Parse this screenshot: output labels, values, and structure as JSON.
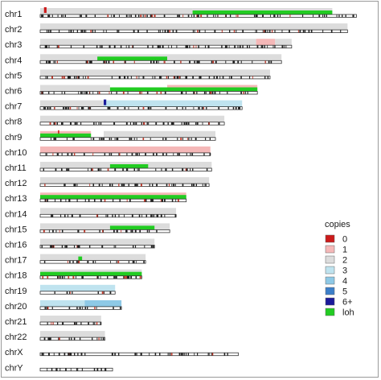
{
  "chart_data": {
    "type": "genome-karyogram",
    "title": "",
    "xlabel": "",
    "ylabel": "",
    "grid": false,
    "legend_placement": "right",
    "legend_title": "copies",
    "legend": [
      {
        "label": "0",
        "color": "#cc1a1a"
      },
      {
        "label": "1",
        "color": "#f5b8b8"
      },
      {
        "label": "2",
        "color": "#dcdcdc"
      },
      {
        "label": "3",
        "color": "#bfe3ef"
      },
      {
        "label": "4",
        "color": "#8ec9e6"
      },
      {
        "label": "5",
        "color": "#3c7fc9"
      },
      {
        "label": "6+",
        "color": "#1a1a9a"
      },
      {
        "label": "loh",
        "color": "#22cc22"
      }
    ],
    "position_unit": "Mb",
    "chromosomes": [
      {
        "name": "chr1",
        "length_mb": 249,
        "segments": [
          {
            "start": 0,
            "end": 120,
            "copies": "2"
          },
          {
            "start": 3,
            "end": 5,
            "copies": "0"
          },
          {
            "start": 120,
            "end": 230,
            "copies": "2"
          },
          {
            "start": 120,
            "end": 230,
            "copies": "loh"
          }
        ]
      },
      {
        "name": "chr2",
        "length_mb": 242,
        "segments": [
          {
            "start": 0,
            "end": 242,
            "copies": "2"
          }
        ]
      },
      {
        "name": "chr3",
        "length_mb": 198,
        "segments": [
          {
            "start": 0,
            "end": 170,
            "copies": "2"
          },
          {
            "start": 170,
            "end": 185,
            "copies": "1"
          },
          {
            "start": 185,
            "end": 198,
            "copies": "2"
          }
        ]
      },
      {
        "name": "chr4",
        "length_mb": 190,
        "segments": [
          {
            "start": 0,
            "end": 45,
            "copies": "2"
          },
          {
            "start": 45,
            "end": 100,
            "copies": "2"
          },
          {
            "start": 45,
            "end": 100,
            "copies": "loh"
          },
          {
            "start": 100,
            "end": 190,
            "copies": "2"
          }
        ]
      },
      {
        "name": "chr5",
        "length_mb": 181,
        "segments": [
          {
            "start": 0,
            "end": 181,
            "copies": "2"
          }
        ]
      },
      {
        "name": "chr6",
        "length_mb": 171,
        "segments": [
          {
            "start": 0,
            "end": 55,
            "copies": "2"
          },
          {
            "start": 55,
            "end": 100,
            "copies": "loh"
          },
          {
            "start": 100,
            "end": 171,
            "copies": "1"
          },
          {
            "start": 100,
            "end": 171,
            "copies": "loh"
          }
        ]
      },
      {
        "name": "chr7",
        "length_mb": 159,
        "segments": [
          {
            "start": 0,
            "end": 50,
            "copies": "2"
          },
          {
            "start": 50,
            "end": 159,
            "copies": "3"
          },
          {
            "start": 50,
            "end": 52,
            "copies": "6+"
          }
        ]
      },
      {
        "name": "chr8",
        "length_mb": 145,
        "segments": [
          {
            "start": 0,
            "end": 145,
            "copies": "2"
          }
        ]
      },
      {
        "name": "chr9",
        "length_mb": 138,
        "segments": [
          {
            "start": 0,
            "end": 40,
            "copies": "1"
          },
          {
            "start": 14,
            "end": 15,
            "copies": "0"
          },
          {
            "start": 0,
            "end": 40,
            "copies": "loh"
          },
          {
            "start": 50,
            "end": 138,
            "copies": "2"
          }
        ]
      },
      {
        "name": "chr10",
        "length_mb": 134,
        "segments": [
          {
            "start": 0,
            "end": 134,
            "copies": "1"
          }
        ]
      },
      {
        "name": "chr11",
        "length_mb": 135,
        "segments": [
          {
            "start": 0,
            "end": 135,
            "copies": "2"
          },
          {
            "start": 55,
            "end": 85,
            "copies": "loh"
          }
        ]
      },
      {
        "name": "chr12",
        "length_mb": 133,
        "segments": [
          {
            "start": 0,
            "end": 133,
            "copies": "2"
          }
        ]
      },
      {
        "name": "chr13",
        "length_mb": 115,
        "segments": [
          {
            "start": 0,
            "end": 115,
            "copies": "1"
          },
          {
            "start": 0,
            "end": 115,
            "copies": "loh"
          }
        ]
      },
      {
        "name": "chr14",
        "length_mb": 107,
        "segments": [
          {
            "start": 0,
            "end": 107,
            "copies": "2"
          }
        ]
      },
      {
        "name": "chr15",
        "length_mb": 102,
        "segments": [
          {
            "start": 0,
            "end": 102,
            "copies": "2"
          },
          {
            "start": 55,
            "end": 90,
            "copies": "loh"
          }
        ]
      },
      {
        "name": "chr16",
        "length_mb": 90,
        "segments": [
          {
            "start": 0,
            "end": 90,
            "copies": "2"
          }
        ]
      },
      {
        "name": "chr17",
        "length_mb": 83,
        "segments": [
          {
            "start": 0,
            "end": 83,
            "copies": "2"
          },
          {
            "start": 30,
            "end": 33,
            "copies": "loh"
          }
        ]
      },
      {
        "name": "chr18",
        "length_mb": 80,
        "segments": [
          {
            "start": 0,
            "end": 80,
            "copies": "2"
          },
          {
            "start": 0,
            "end": 80,
            "copies": "loh"
          }
        ]
      },
      {
        "name": "chr19",
        "length_mb": 59,
        "segments": [
          {
            "start": 0,
            "end": 59,
            "copies": "3"
          }
        ]
      },
      {
        "name": "chr20",
        "length_mb": 64,
        "segments": [
          {
            "start": 0,
            "end": 35,
            "copies": "3"
          },
          {
            "start": 35,
            "end": 64,
            "copies": "4"
          }
        ]
      },
      {
        "name": "chr21",
        "length_mb": 48,
        "segments": [
          {
            "start": 0,
            "end": 48,
            "copies": "2"
          }
        ]
      },
      {
        "name": "chr22",
        "length_mb": 51,
        "segments": [
          {
            "start": 0,
            "end": 51,
            "copies": "2"
          }
        ]
      },
      {
        "name": "chrX",
        "length_mb": 156,
        "segments": []
      },
      {
        "name": "chrY",
        "length_mb": 57,
        "segments": []
      }
    ]
  }
}
